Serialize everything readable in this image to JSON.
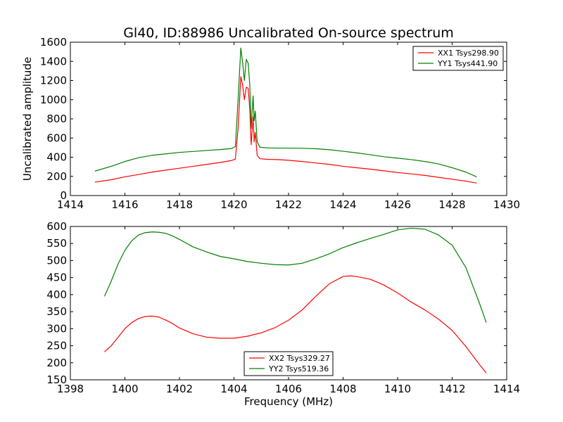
{
  "chart_data": [
    {
      "type": "line",
      "title": "Gl40, ID:88986 Uncalibrated On-source spectrum",
      "xlabel": "",
      "ylabel": "Uncalibrated amplitude",
      "xlim": [
        1414,
        1430
      ],
      "ylim": [
        0,
        1600
      ],
      "xticks": [
        1414,
        1416,
        1418,
        1420,
        1422,
        1424,
        1426,
        1428,
        1430
      ],
      "yticks": [
        0,
        200,
        400,
        600,
        800,
        1000,
        1200,
        1400,
        1600
      ],
      "legend_position": "upper right",
      "series": [
        {
          "name": "XX1 Tsys298.90",
          "color": "#ff0000",
          "points": [
            [
              1414.9,
              140
            ],
            [
              1415.5,
              165
            ],
            [
              1416,
              195
            ],
            [
              1416.5,
              220
            ],
            [
              1417,
              245
            ],
            [
              1417.5,
              265
            ],
            [
              1418,
              285
            ],
            [
              1418.5,
              305
            ],
            [
              1419,
              325
            ],
            [
              1419.5,
              345
            ],
            [
              1419.9,
              365
            ],
            [
              1420.05,
              380
            ],
            [
              1420.15,
              700
            ],
            [
              1420.25,
              1240
            ],
            [
              1420.32,
              1150
            ],
            [
              1420.38,
              1000
            ],
            [
              1420.45,
              1130
            ],
            [
              1420.52,
              1120
            ],
            [
              1420.58,
              900
            ],
            [
              1420.63,
              530
            ],
            [
              1420.7,
              820
            ],
            [
              1420.74,
              560
            ],
            [
              1420.78,
              660
            ],
            [
              1420.85,
              420
            ],
            [
              1420.95,
              385
            ],
            [
              1421.2,
              378
            ],
            [
              1421.6,
              375
            ],
            [
              1422,
              368
            ],
            [
              1422.5,
              355
            ],
            [
              1423,
              340
            ],
            [
              1423.5,
              325
            ],
            [
              1424,
              305
            ],
            [
              1424.5,
              290
            ],
            [
              1425,
              275
            ],
            [
              1425.5,
              258
            ],
            [
              1426,
              240
            ],
            [
              1426.5,
              225
            ],
            [
              1427,
              210
            ],
            [
              1427.5,
              190
            ],
            [
              1428,
              170
            ],
            [
              1428.5,
              150
            ],
            [
              1428.9,
              130
            ]
          ]
        },
        {
          "name": "YY1 Tsys441.90",
          "color": "#008000",
          "points": [
            [
              1414.9,
              255
            ],
            [
              1415.5,
              305
            ],
            [
              1416,
              355
            ],
            [
              1416.5,
              395
            ],
            [
              1417,
              420
            ],
            [
              1417.5,
              435
            ],
            [
              1418,
              450
            ],
            [
              1418.5,
              460
            ],
            [
              1419,
              470
            ],
            [
              1419.5,
              480
            ],
            [
              1419.9,
              490
            ],
            [
              1420.05,
              510
            ],
            [
              1420.15,
              1000
            ],
            [
              1420.25,
              1540
            ],
            [
              1420.32,
              1380
            ],
            [
              1420.38,
              1200
            ],
            [
              1420.45,
              1420
            ],
            [
              1420.52,
              1380
            ],
            [
              1420.58,
              1150
            ],
            [
              1420.63,
              700
            ],
            [
              1420.7,
              1040
            ],
            [
              1420.74,
              780
            ],
            [
              1420.78,
              880
            ],
            [
              1420.85,
              560
            ],
            [
              1420.95,
              505
            ],
            [
              1421.2,
              497
            ],
            [
              1421.6,
              495
            ],
            [
              1422,
              495
            ],
            [
              1422.5,
              493
            ],
            [
              1423,
              488
            ],
            [
              1423.5,
              478
            ],
            [
              1424,
              462
            ],
            [
              1424.5,
              445
            ],
            [
              1425,
              425
            ],
            [
              1425.5,
              405
            ],
            [
              1426,
              390
            ],
            [
              1426.5,
              375
            ],
            [
              1427,
              355
            ],
            [
              1427.5,
              330
            ],
            [
              1428,
              290
            ],
            [
              1428.5,
              245
            ],
            [
              1428.9,
              195
            ]
          ]
        }
      ]
    },
    {
      "type": "line",
      "title": "",
      "xlabel": "Frequency (MHz)",
      "ylabel": "",
      "xlim": [
        1398,
        1414
      ],
      "ylim": [
        150,
        600
      ],
      "xticks": [
        1398,
        1400,
        1402,
        1404,
        1406,
        1408,
        1410,
        1412,
        1414
      ],
      "yticks": [
        150,
        200,
        250,
        300,
        350,
        400,
        450,
        500,
        550,
        600
      ],
      "legend_position": "lower center",
      "series": [
        {
          "name": "XX2 Tsys329.27",
          "color": "#ff0000",
          "points": [
            [
              1399.25,
              232
            ],
            [
              1399.5,
              250
            ],
            [
              1399.75,
              275
            ],
            [
              1400,
              300
            ],
            [
              1400.25,
              318
            ],
            [
              1400.5,
              330
            ],
            [
              1400.75,
              336
            ],
            [
              1401,
              337
            ],
            [
              1401.25,
              334
            ],
            [
              1401.5,
              325
            ],
            [
              1401.75,
              315
            ],
            [
              1402,
              302
            ],
            [
              1402.5,
              285
            ],
            [
              1403,
              275
            ],
            [
              1403.5,
              272
            ],
            [
              1404,
              272
            ],
            [
              1404.5,
              278
            ],
            [
              1405,
              288
            ],
            [
              1405.5,
              303
            ],
            [
              1406,
              325
            ],
            [
              1406.5,
              355
            ],
            [
              1407,
              395
            ],
            [
              1407.5,
              432
            ],
            [
              1408,
              453
            ],
            [
              1408.25,
              455
            ],
            [
              1408.5,
              453
            ],
            [
              1409,
              445
            ],
            [
              1409.5,
              428
            ],
            [
              1410,
              405
            ],
            [
              1410.5,
              378
            ],
            [
              1411,
              355
            ],
            [
              1411.5,
              328
            ],
            [
              1412,
              295
            ],
            [
              1412.5,
              248
            ],
            [
              1413,
              195
            ],
            [
              1413.25,
              170
            ]
          ]
        },
        {
          "name": "YY2 Tsys519.36",
          "color": "#008000",
          "points": [
            [
              1399.25,
              395
            ],
            [
              1399.5,
              440
            ],
            [
              1399.75,
              490
            ],
            [
              1400,
              530
            ],
            [
              1400.25,
              558
            ],
            [
              1400.5,
              575
            ],
            [
              1400.75,
              582
            ],
            [
              1401,
              584
            ],
            [
              1401.25,
              583
            ],
            [
              1401.5,
              580
            ],
            [
              1401.75,
              572
            ],
            [
              1402,
              562
            ],
            [
              1402.5,
              540
            ],
            [
              1403,
              525
            ],
            [
              1403.5,
              512
            ],
            [
              1404,
              505
            ],
            [
              1404.5,
              497
            ],
            [
              1405,
              492
            ],
            [
              1405.5,
              488
            ],
            [
              1406,
              487
            ],
            [
              1406.5,
              492
            ],
            [
              1407,
              505
            ],
            [
              1407.5,
              520
            ],
            [
              1408,
              538
            ],
            [
              1408.5,
              552
            ],
            [
              1409,
              565
            ],
            [
              1409.5,
              577
            ],
            [
              1410,
              590
            ],
            [
              1410.5,
              595
            ],
            [
              1411,
              592
            ],
            [
              1411.5,
              575
            ],
            [
              1412,
              545
            ],
            [
              1412.5,
              480
            ],
            [
              1413,
              375
            ],
            [
              1413.25,
              318
            ]
          ]
        }
      ]
    }
  ]
}
